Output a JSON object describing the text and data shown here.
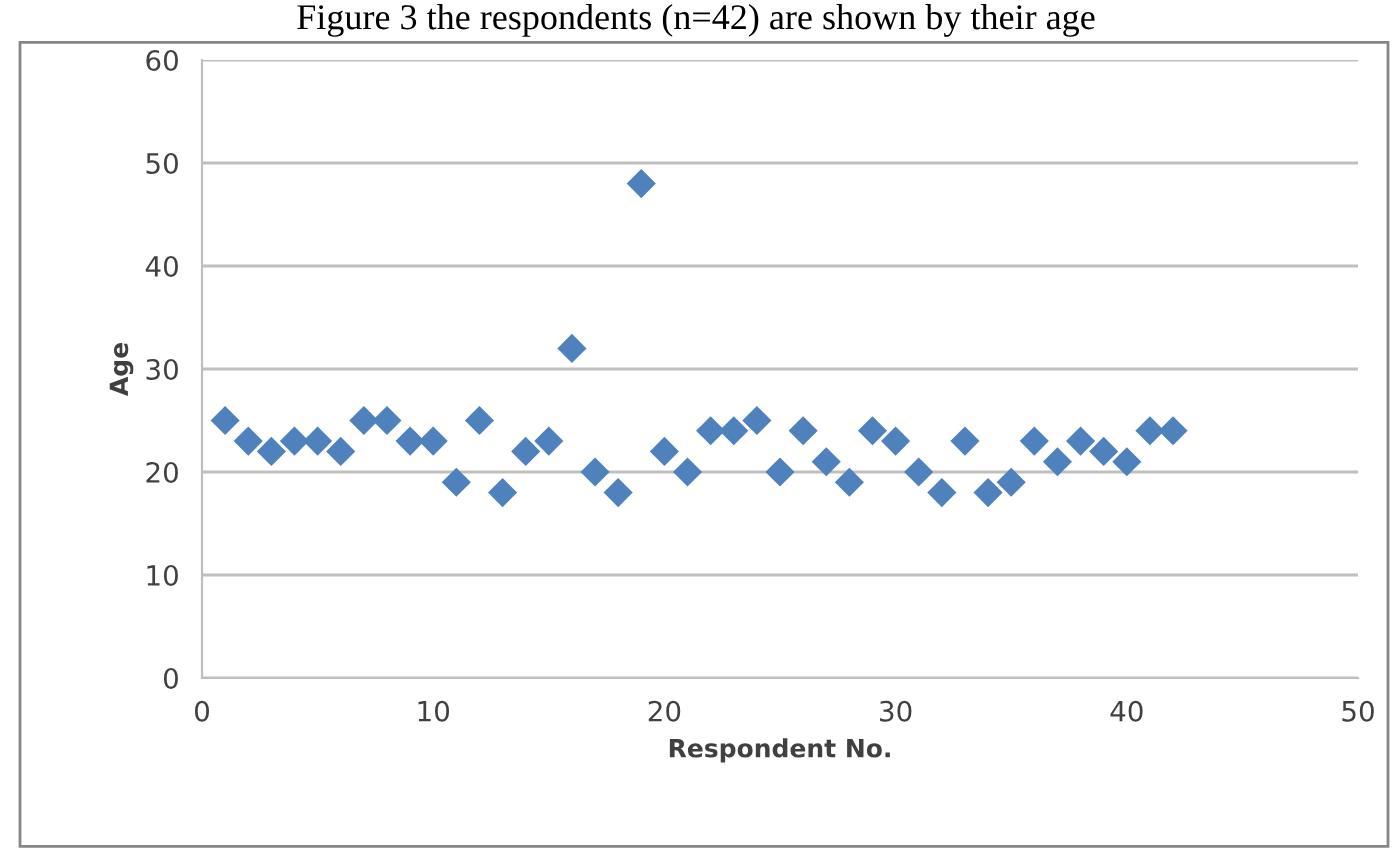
{
  "chart_data": {
    "type": "scatter",
    "xlabel": "Respondent No.",
    "ylabel": "Age",
    "annotations": [
      "Figure 3 the respondents (n=42) are shown by their age"
    ],
    "x": [
      1,
      2,
      3,
      4,
      5,
      6,
      7,
      8,
      9,
      10,
      11,
      12,
      13,
      14,
      15,
      16,
      17,
      18,
      19,
      20,
      21,
      22,
      23,
      24,
      25,
      26,
      27,
      28,
      29,
      30,
      31,
      32,
      33,
      34,
      35,
      36,
      37,
      38,
      39,
      40,
      41,
      42
    ],
    "series": [
      {
        "color": "#4f81bd",
        "values": [
          25,
          23,
          22,
          23,
          23,
          22,
          25,
          25,
          23,
          23,
          19,
          25,
          18,
          22,
          23,
          32,
          20,
          18,
          48,
          22,
          20,
          24,
          24,
          25,
          20,
          24,
          21,
          19,
          24,
          23,
          20,
          18,
          23,
          18,
          19,
          23,
          21,
          23,
          22,
          21,
          24,
          24
        ]
      }
    ],
    "xlim": [
      0,
      50
    ],
    "xticks": [
      0,
      10,
      20,
      30,
      40,
      50
    ],
    "ylim": [
      0,
      60
    ],
    "yticks": [
      0,
      10,
      20,
      30,
      40,
      50,
      60
    ],
    "grid": "y",
    "marker": "diamond",
    "legend": false
  }
}
